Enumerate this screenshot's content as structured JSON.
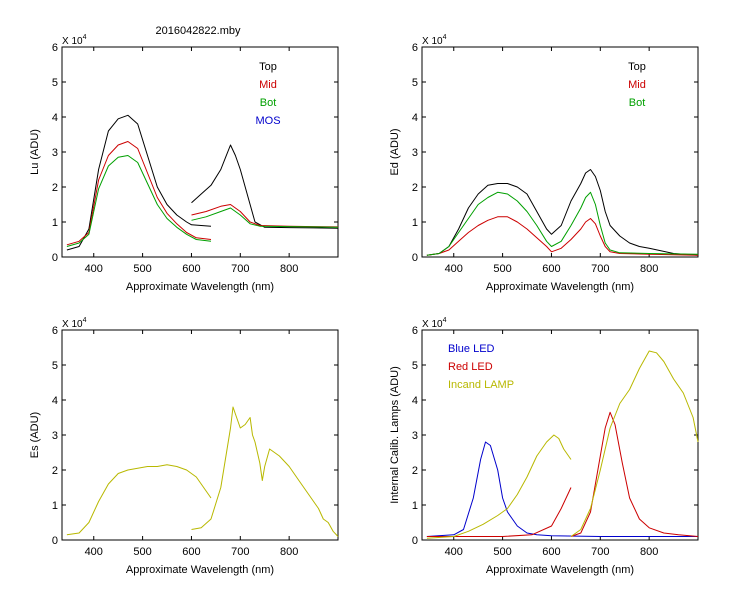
{
  "figure_title": "2016042822.mby",
  "chart_data": [
    {
      "id": "lu",
      "type": "line",
      "ylabel": "Lu (ADU)",
      "xlabel": "Approximate Wavelength (nm)",
      "xlim": [
        335,
        900
      ],
      "ylim": [
        0,
        6
      ],
      "multiplier": "X 10",
      "multiplier_exp": "4",
      "xticks": [
        "400",
        "500",
        "600",
        "700",
        "800"
      ],
      "xtick_values": [
        400,
        500,
        600,
        700,
        800
      ],
      "yticks": [
        "0",
        "1",
        "2",
        "3",
        "4",
        "5",
        "6"
      ],
      "legend": [
        {
          "label": "Top",
          "color": "#000000"
        },
        {
          "label": "Mid",
          "color": "#cc0000"
        },
        {
          "label": "Bot",
          "color": "#00a000"
        },
        {
          "label": "MOS",
          "color": "#0000cc"
        }
      ],
      "series": [
        {
          "name": "Top",
          "color": "#000000",
          "segments": [
            {
              "x": [
                345,
                370,
                390,
                410,
                430,
                450,
                470,
                490,
                510,
                530,
                550,
                570,
                590,
                600,
                620,
                640
              ],
              "y": [
                0.2,
                0.3,
                0.8,
                2.5,
                3.6,
                3.95,
                4.05,
                3.8,
                2.9,
                2.0,
                1.5,
                1.2,
                1.0,
                0.92,
                0.9,
                0.88
              ]
            },
            {
              "x": [
                600,
                620,
                640,
                660,
                670,
                680,
                690,
                700,
                710,
                720,
                730,
                750,
                800,
                850,
                900
              ],
              "y": [
                1.55,
                1.8,
                2.05,
                2.5,
                2.85,
                3.2,
                2.9,
                2.5,
                2.0,
                1.5,
                1.0,
                0.85,
                0.84,
                0.83,
                0.82
              ]
            }
          ]
        },
        {
          "name": "Mid",
          "color": "#cc0000",
          "segments": [
            {
              "x": [
                345,
                370,
                390,
                410,
                430,
                450,
                470,
                490,
                510,
                530,
                550,
                570,
                590,
                610,
                640
              ],
              "y": [
                0.35,
                0.45,
                0.7,
                2.2,
                2.9,
                3.2,
                3.3,
                3.1,
                2.4,
                1.7,
                1.25,
                0.95,
                0.7,
                0.55,
                0.5
              ]
            },
            {
              "x": [
                600,
                630,
                660,
                680,
                700,
                720,
                740,
                800,
                850,
                900
              ],
              "y": [
                1.2,
                1.3,
                1.45,
                1.5,
                1.3,
                1.0,
                0.9,
                0.88,
                0.87,
                0.86
              ]
            }
          ]
        },
        {
          "name": "Bot",
          "color": "#00a000",
          "segments": [
            {
              "x": [
                345,
                370,
                390,
                410,
                430,
                450,
                470,
                490,
                510,
                530,
                550,
                570,
                590,
                610,
                640
              ],
              "y": [
                0.3,
                0.4,
                0.65,
                1.95,
                2.6,
                2.85,
                2.9,
                2.7,
                2.1,
                1.5,
                1.1,
                0.85,
                0.65,
                0.5,
                0.45
              ]
            },
            {
              "x": [
                600,
                630,
                660,
                680,
                700,
                720,
                740,
                800,
                850,
                900
              ],
              "y": [
                1.05,
                1.15,
                1.3,
                1.4,
                1.2,
                0.95,
                0.88,
                0.87,
                0.86,
                0.85
              ]
            }
          ]
        }
      ]
    },
    {
      "id": "ed",
      "type": "line",
      "ylabel": "Ed (ADU)",
      "xlabel": "Approximate Wavelength (nm)",
      "xlim": [
        335,
        900
      ],
      "ylim": [
        0,
        6
      ],
      "multiplier": "X 10",
      "multiplier_exp": "4",
      "xticks": [
        "400",
        "500",
        "600",
        "700",
        "800"
      ],
      "xtick_values": [
        400,
        500,
        600,
        700,
        800
      ],
      "yticks": [
        "0",
        "1",
        "2",
        "3",
        "4",
        "5",
        "6"
      ],
      "legend": [
        {
          "label": "Top",
          "color": "#000000"
        },
        {
          "label": "Mid",
          "color": "#cc0000"
        },
        {
          "label": "Bot",
          "color": "#00a000"
        }
      ],
      "series": [
        {
          "name": "Top",
          "color": "#000000",
          "segments": [
            {
              "x": [
                345,
                370,
                390,
                410,
                430,
                450,
                470,
                490,
                510,
                530,
                550,
                570,
                590,
                600,
                620,
                640,
                660,
                670,
                680,
                690,
                700,
                710,
                720,
                740,
                760,
                780,
                800,
                850,
                900
              ],
              "y": [
                0.05,
                0.1,
                0.3,
                0.8,
                1.4,
                1.8,
                2.05,
                2.1,
                2.1,
                2.0,
                1.8,
                1.3,
                0.8,
                0.65,
                0.9,
                1.6,
                2.1,
                2.4,
                2.5,
                2.3,
                1.9,
                1.3,
                0.9,
                0.6,
                0.4,
                0.3,
                0.25,
                0.1,
                0.05
              ]
            }
          ]
        },
        {
          "name": "Mid",
          "color": "#cc0000",
          "segments": [
            {
              "x": [
                345,
                370,
                390,
                410,
                430,
                450,
                470,
                490,
                510,
                530,
                550,
                570,
                590,
                600,
                620,
                640,
                660,
                670,
                680,
                690,
                700,
                710,
                720,
                740,
                800,
                900
              ],
              "y": [
                0.05,
                0.1,
                0.2,
                0.45,
                0.7,
                0.9,
                1.05,
                1.15,
                1.15,
                1.0,
                0.8,
                0.55,
                0.3,
                0.15,
                0.25,
                0.5,
                0.8,
                1.0,
                1.1,
                0.95,
                0.6,
                0.3,
                0.15,
                0.1,
                0.08,
                0.05
              ]
            }
          ]
        },
        {
          "name": "Bot",
          "color": "#00a000",
          "segments": [
            {
              "x": [
                345,
                370,
                390,
                410,
                430,
                450,
                470,
                490,
                510,
                530,
                550,
                570,
                590,
                600,
                620,
                640,
                660,
                670,
                680,
                690,
                700,
                710,
                720,
                740,
                800,
                900
              ],
              "y": [
                0.05,
                0.1,
                0.3,
                0.7,
                1.1,
                1.5,
                1.7,
                1.85,
                1.8,
                1.6,
                1.3,
                0.9,
                0.45,
                0.3,
                0.45,
                0.9,
                1.4,
                1.7,
                1.85,
                1.5,
                0.9,
                0.4,
                0.2,
                0.12,
                0.1,
                0.08
              ]
            }
          ]
        }
      ]
    },
    {
      "id": "es",
      "type": "line",
      "ylabel": "Es (ADU)",
      "xlabel": "Approximate Wavelength (nm)",
      "xlim": [
        335,
        900
      ],
      "ylim": [
        0,
        6
      ],
      "multiplier": "X 10",
      "multiplier_exp": "4",
      "xticks": [
        "400",
        "500",
        "600",
        "700",
        "800"
      ],
      "xtick_values": [
        400,
        500,
        600,
        700,
        800
      ],
      "yticks": [
        "0",
        "1",
        "2",
        "3",
        "4",
        "5",
        "6"
      ],
      "legend": [],
      "series": [
        {
          "name": "Es",
          "color": "#b8b800",
          "segments": [
            {
              "x": [
                345,
                370,
                390,
                410,
                430,
                450,
                470,
                490,
                510,
                530,
                550,
                570,
                590,
                610,
                630,
                640
              ],
              "y": [
                0.15,
                0.2,
                0.5,
                1.1,
                1.6,
                1.9,
                2.0,
                2.05,
                2.1,
                2.1,
                2.15,
                2.1,
                2.0,
                1.8,
                1.4,
                1.2
              ]
            },
            {
              "x": [
                600,
                620,
                640,
                660,
                680,
                685,
                690,
                700,
                710,
                720,
                725,
                730,
                740,
                745,
                750,
                760,
                770,
                780,
                800,
                820,
                840,
                860,
                870,
                880,
                890,
                900
              ],
              "y": [
                0.3,
                0.35,
                0.6,
                1.5,
                3.2,
                3.8,
                3.6,
                3.2,
                3.3,
                3.5,
                3.0,
                2.8,
                2.2,
                1.7,
                2.1,
                2.6,
                2.5,
                2.4,
                2.1,
                1.7,
                1.3,
                0.9,
                0.6,
                0.5,
                0.25,
                0.1
              ]
            }
          ]
        }
      ]
    },
    {
      "id": "lamps",
      "type": "line",
      "ylabel": "Internal Calib. Lamps (ADU)",
      "xlabel": "Approximate Wavelength (nm)",
      "xlim": [
        335,
        900
      ],
      "ylim": [
        0,
        6
      ],
      "multiplier": "X 10",
      "multiplier_exp": "4",
      "xticks": [
        "400",
        "500",
        "600",
        "700",
        "800"
      ],
      "xtick_values": [
        400,
        500,
        600,
        700,
        800
      ],
      "yticks": [
        "0",
        "1",
        "2",
        "3",
        "4",
        "5",
        "6"
      ],
      "legend": [
        {
          "label": "Blue LED",
          "color": "#0000cc"
        },
        {
          "label": "Red LED",
          "color": "#cc0000"
        },
        {
          "label": "Incand LAMP",
          "color": "#b8b800"
        }
      ],
      "series": [
        {
          "name": "Blue LED",
          "color": "#0000cc",
          "segments": [
            {
              "x": [
                345,
                400,
                420,
                440,
                455,
                465,
                475,
                490,
                500,
                510,
                520,
                530,
                550,
                570,
                600,
                700,
                800,
                900
              ],
              "y": [
                0.1,
                0.15,
                0.3,
                1.2,
                2.3,
                2.8,
                2.7,
                2.0,
                1.2,
                0.8,
                0.6,
                0.4,
                0.2,
                0.15,
                0.12,
                0.1,
                0.1,
                0.1
              ]
            }
          ]
        },
        {
          "name": "Red LED",
          "color": "#cc0000",
          "segments": [
            {
              "x": [
                345,
                500,
                560,
                600,
                620,
                640
              ],
              "y": [
                0.1,
                0.1,
                0.15,
                0.4,
                0.9,
                1.5
              ]
            },
            {
              "x": [
                640,
                660,
                680,
                700,
                710,
                720,
                730,
                745,
                760,
                780,
                800,
                830,
                860,
                900
              ],
              "y": [
                0.1,
                0.2,
                0.8,
                2.4,
                3.2,
                3.65,
                3.3,
                2.2,
                1.2,
                0.6,
                0.35,
                0.2,
                0.15,
                0.1
              ]
            }
          ]
        },
        {
          "name": "Incand LAMP",
          "color": "#b8b800",
          "segments": [
            {
              "x": [
                345,
                400,
                430,
                460,
                490,
                510,
                530,
                550,
                570,
                590,
                605,
                615,
                625,
                640
              ],
              "y": [
                0.05,
                0.1,
                0.25,
                0.45,
                0.7,
                0.9,
                1.3,
                1.8,
                2.4,
                2.8,
                3.0,
                2.9,
                2.6,
                2.3
              ]
            },
            {
              "x": [
                640,
                660,
                680,
                700,
                720,
                740,
                760,
                780,
                800,
                815,
                830,
                850,
                870,
                890,
                900
              ],
              "y": [
                0.1,
                0.3,
                0.9,
                2.0,
                3.2,
                3.9,
                4.3,
                4.9,
                5.4,
                5.35,
                5.1,
                4.6,
                4.2,
                3.5,
                2.8
              ]
            }
          ]
        }
      ]
    }
  ]
}
